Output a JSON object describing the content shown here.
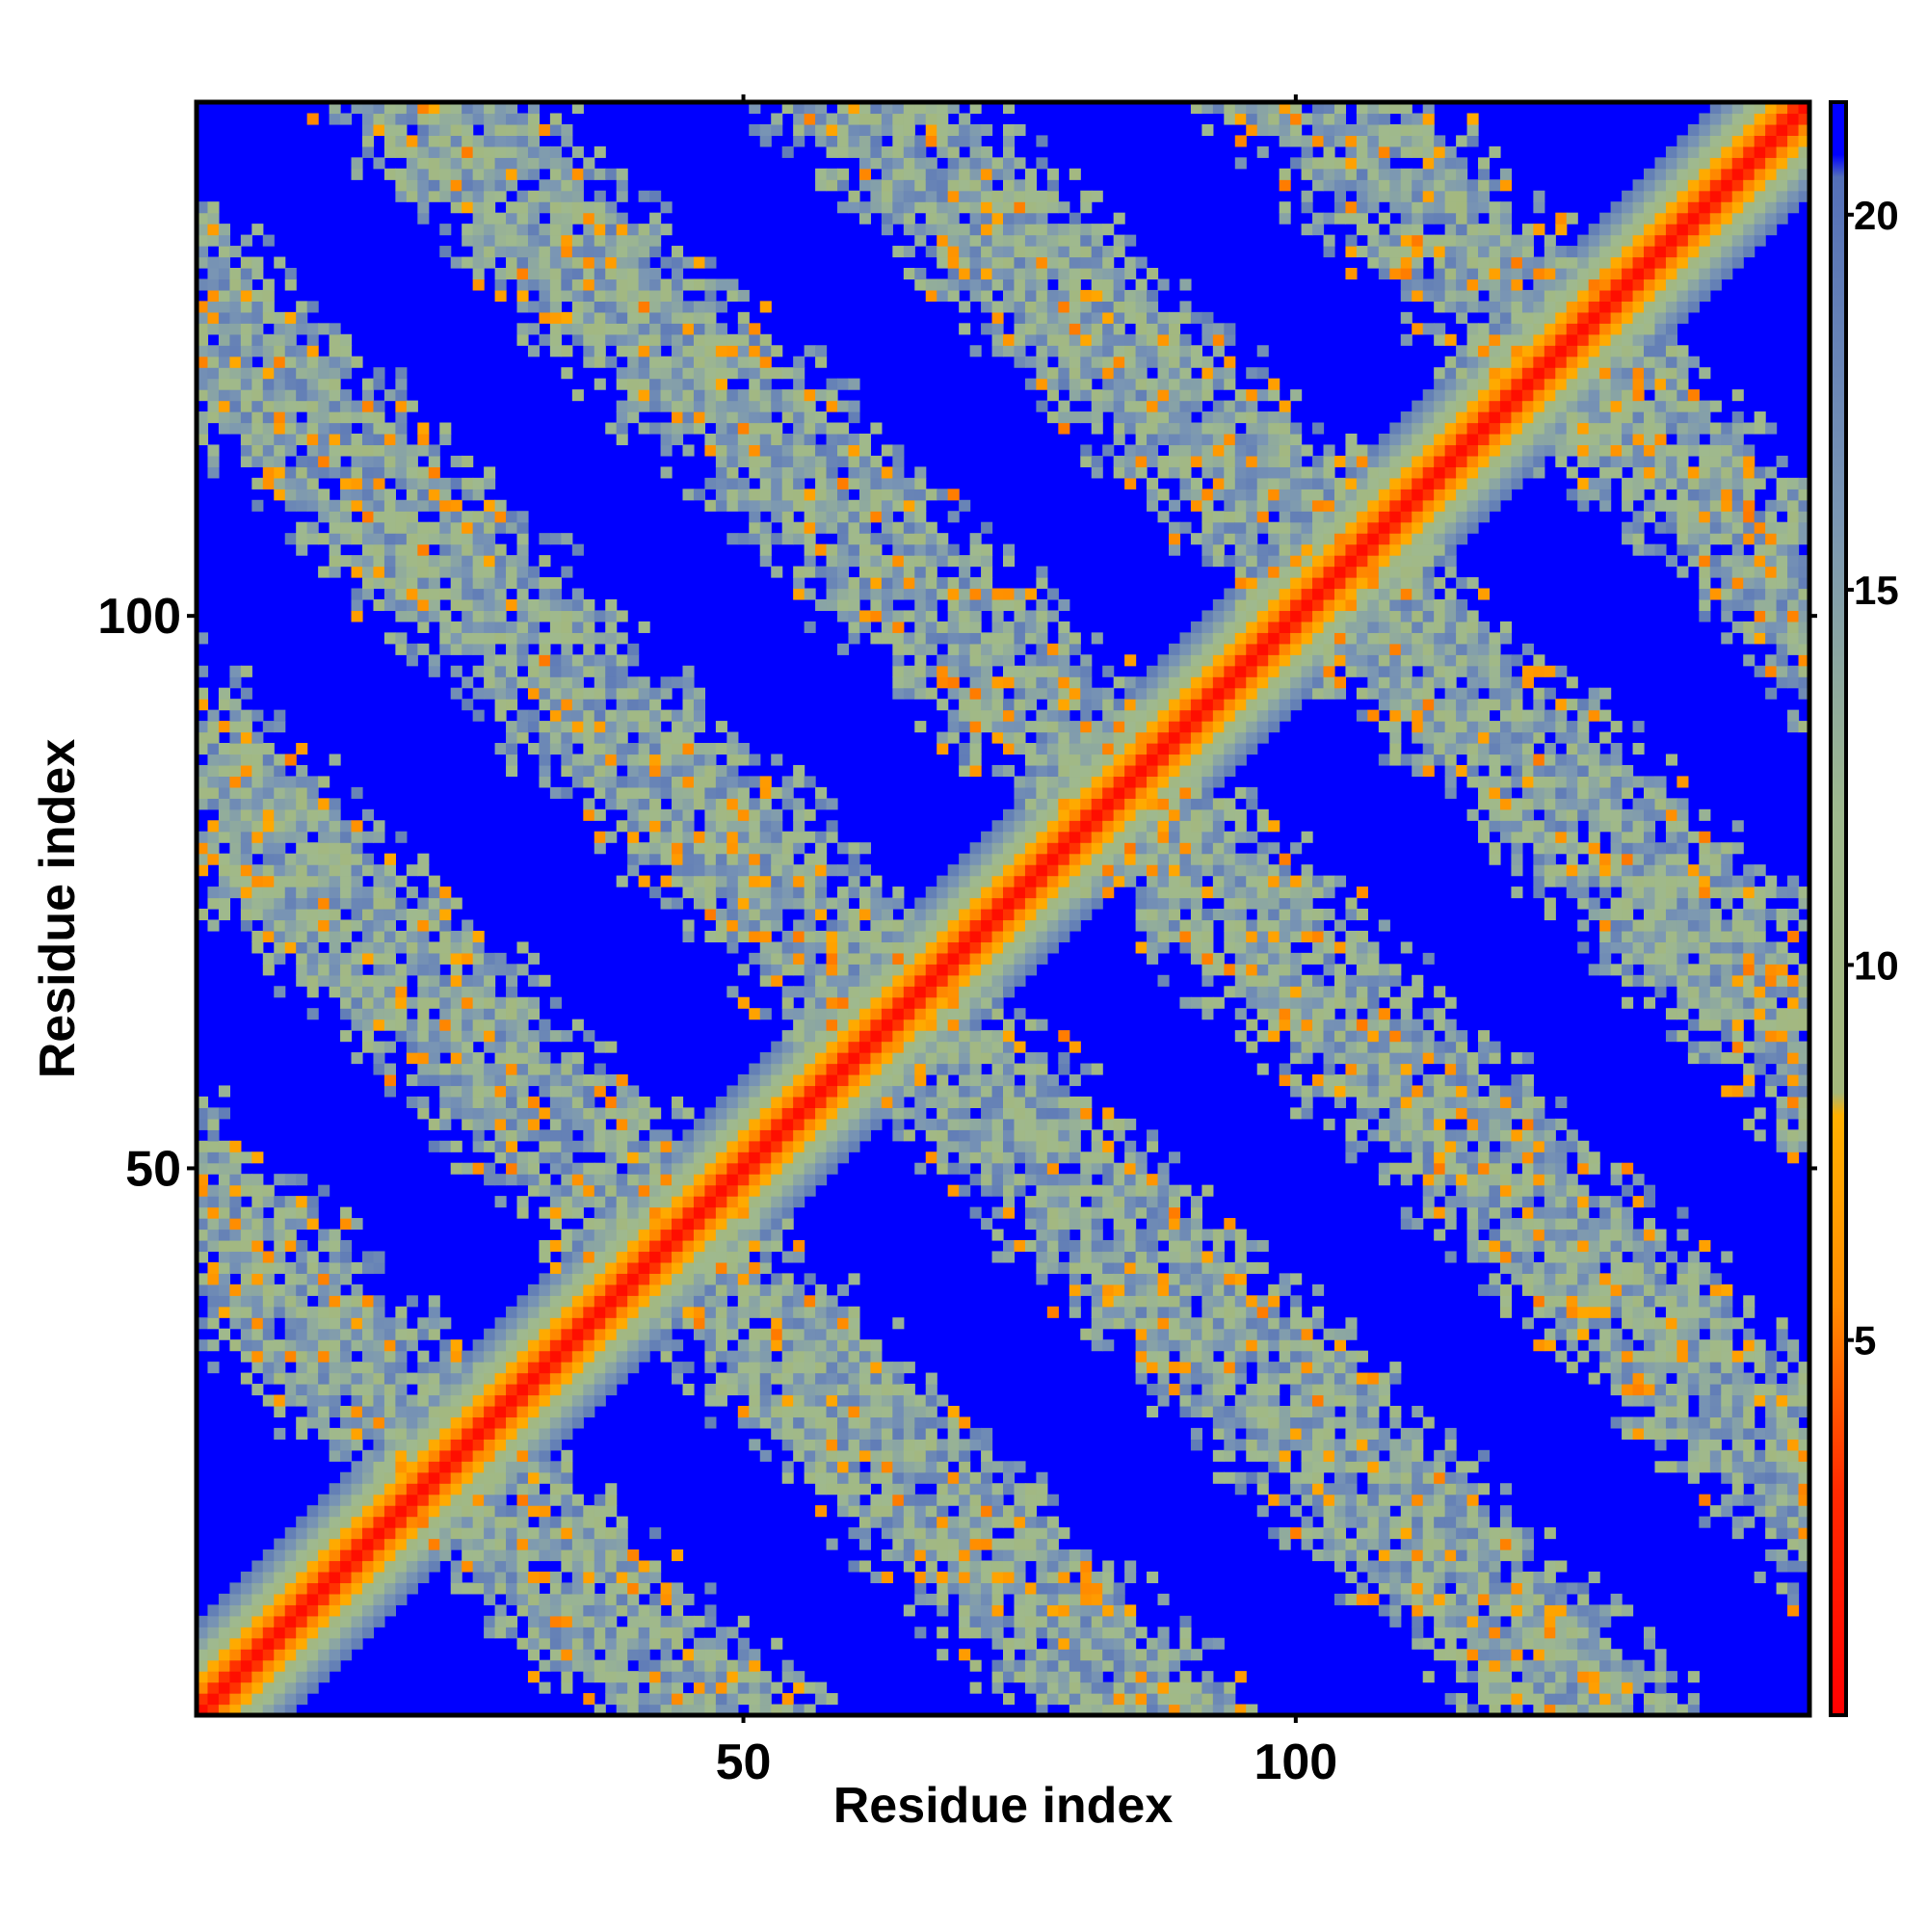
{
  "chart_data": {
    "type": "heatmap",
    "title": "",
    "xlabel": "Residue index",
    "ylabel": "Residue index",
    "n_residues": 146,
    "xlim": [
      1,
      146
    ],
    "ylim": [
      1,
      146
    ],
    "x_ticks": [
      50,
      100
    ],
    "y_ticks": [
      50,
      100
    ],
    "grid": false,
    "value_description": "pairwise distance between residues",
    "colorbar": {
      "ticks": [
        5,
        10,
        15,
        20
      ],
      "range": [
        0,
        21.5
      ],
      "stops": [
        {
          "value": 0,
          "color": "#ff0000"
        },
        {
          "value": 3,
          "color": "#ff2a00"
        },
        {
          "value": 5.5,
          "color": "#ff8c00"
        },
        {
          "value": 8,
          "color": "#ffb000"
        },
        {
          "value": 8.3,
          "color": "#a4b87c"
        },
        {
          "value": 12,
          "color": "#9fb98e"
        },
        {
          "value": 16,
          "color": "#7a96b4"
        },
        {
          "value": 20.5,
          "color": "#5470b8"
        },
        {
          "value": 20.8,
          "color": "#0000ff"
        },
        {
          "value": 21.5,
          "color": "#0000ff"
        }
      ]
    },
    "structure": {
      "diagonal_band_halfwidth": 8,
      "contact_bands": [
        {
          "orientation": "anti-diagonal",
          "i_plus_j": 47,
          "halfwidth": 5
        },
        {
          "orientation": "anti-diagonal",
          "i_plus_j": 87,
          "halfwidth": 5
        },
        {
          "orientation": "anti-diagonal",
          "i_plus_j": 128,
          "halfwidth": 5
        },
        {
          "orientation": "anti-diagonal",
          "i_plus_j": 168,
          "halfwidth": 5
        },
        {
          "orientation": "anti-diagonal",
          "i_plus_j": 208,
          "halfwidth": 5
        },
        {
          "orientation": "anti-diagonal",
          "i_plus_j": 248,
          "halfwidth": 5
        }
      ],
      "background_value": 21.5
    }
  }
}
